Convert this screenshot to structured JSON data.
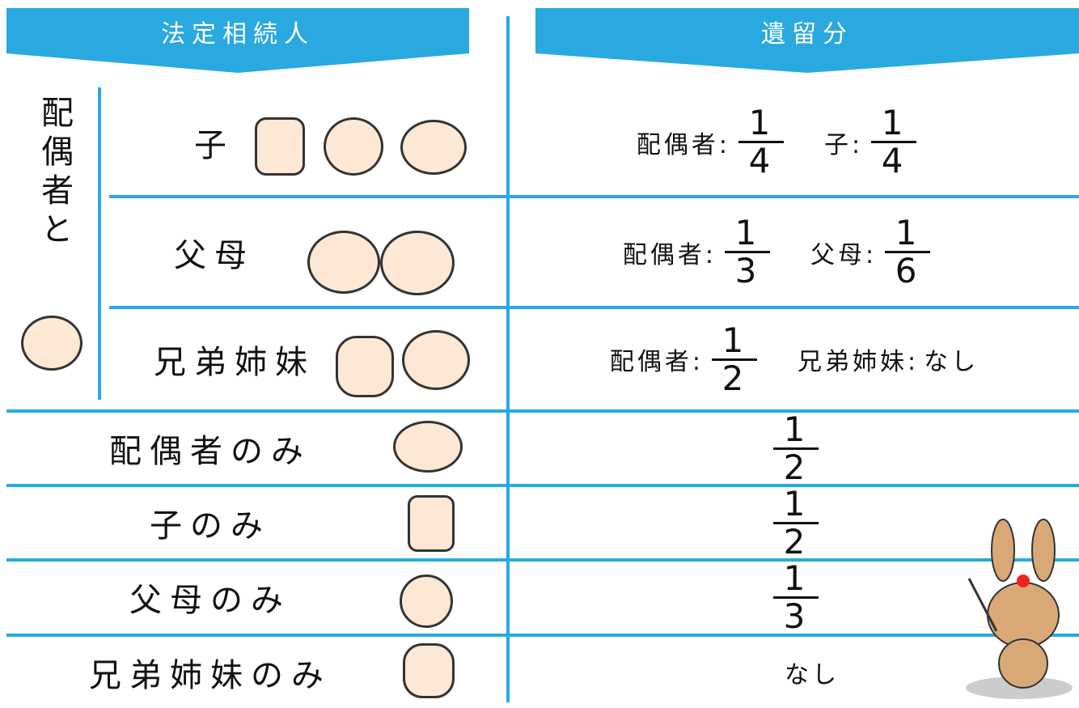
{
  "header": {
    "heirs": "法定相続人",
    "share": "遺留分"
  },
  "spouse_group": {
    "label": "配偶者と",
    "rows": [
      {
        "heir": "子",
        "shares": [
          {
            "name": "配偶者:",
            "numerator": 1,
            "denominator": 4
          },
          {
            "name": "子:",
            "numerator": 1,
            "denominator": 4
          }
        ]
      },
      {
        "heir": "父母",
        "shares": [
          {
            "name": "配偶者:",
            "numerator": 1,
            "denominator": 3
          },
          {
            "name": "父母:",
            "numerator": 1,
            "denominator": 6
          }
        ]
      },
      {
        "heir": "兄弟姉妹",
        "shares": [
          {
            "name": "配偶者:",
            "numerator": 1,
            "denominator": 2
          },
          {
            "name": "兄弟姉妹:",
            "text": "なし"
          }
        ]
      }
    ]
  },
  "single_rows": [
    {
      "heir": "配偶者のみ",
      "share": {
        "numerator": 1,
        "denominator": 2
      }
    },
    {
      "heir": "子のみ",
      "share": {
        "numerator": 1,
        "denominator": 2
      }
    },
    {
      "heir": "父母のみ",
      "share": {
        "numerator": 1,
        "denominator": 3
      }
    },
    {
      "heir": "兄弟姉妹のみ",
      "share": {
        "text": "なし"
      }
    }
  ]
}
